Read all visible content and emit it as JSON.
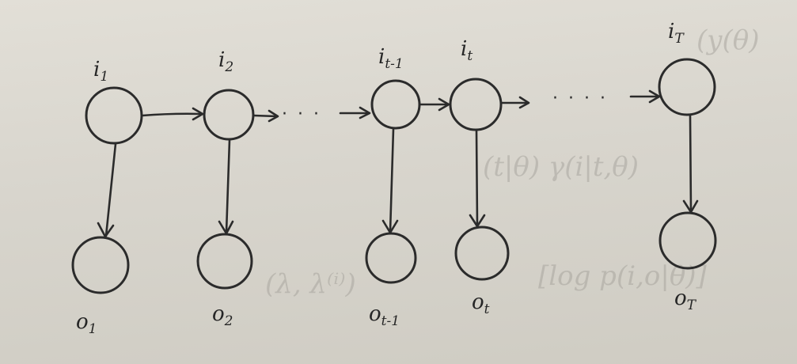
{
  "diagram": {
    "hidden_states": [
      {
        "base": "i",
        "sub": "1"
      },
      {
        "base": "i",
        "sub": "2"
      },
      {
        "base": "i",
        "sub": "t-1"
      },
      {
        "base": "i",
        "sub": "t"
      },
      {
        "base": "i",
        "sub": "T"
      }
    ],
    "observations": [
      {
        "base": "o",
        "sub": "1"
      },
      {
        "base": "o",
        "sub": "2"
      },
      {
        "base": "o",
        "sub": "t-1"
      },
      {
        "base": "o",
        "sub": "t"
      },
      {
        "base": "o",
        "sub": "T"
      }
    ],
    "ellipsis": "· · ·",
    "ellipsis_long": "· · · ·"
  },
  "bleed_through": {
    "line1": "(y(θ)",
    "line2": "(t|θ)  γ(i|t,θ)",
    "line3": "[log p(i,o|θ)]",
    "line4": "(λ, λ⁽ⁱ⁾)"
  },
  "colors": {
    "ink": "#2b2b2b",
    "paper": "#dcd9d1"
  }
}
